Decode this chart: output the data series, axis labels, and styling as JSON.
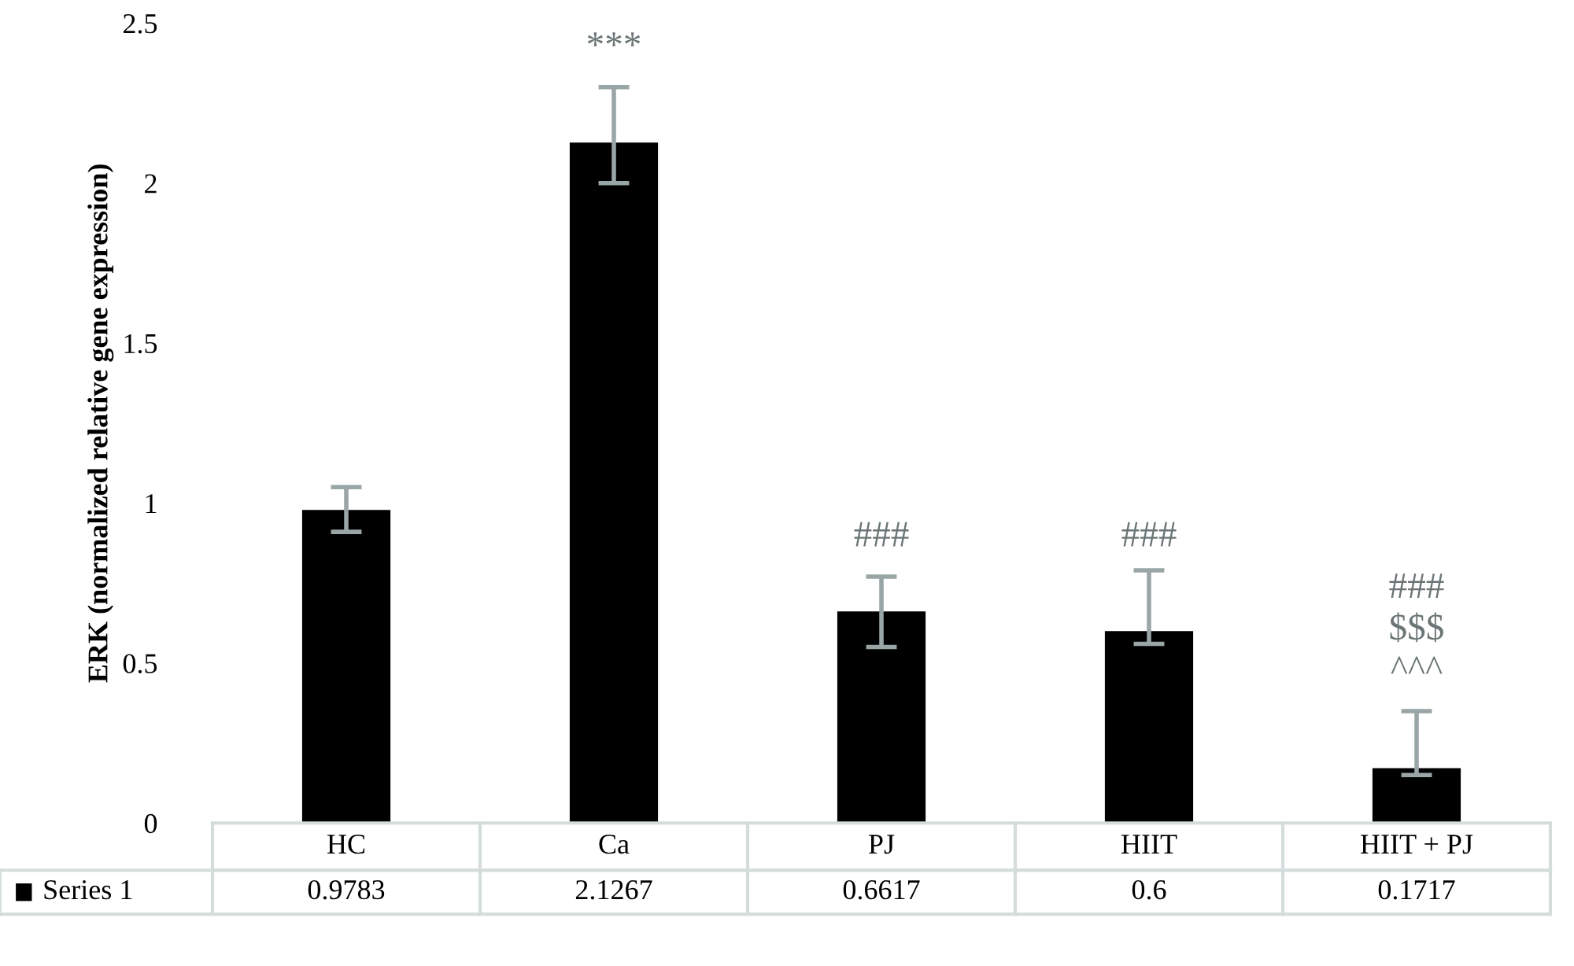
{
  "chart_data": {
    "type": "bar",
    "ylabel": "ERK (normalized relative gene expression)",
    "categories": [
      "HC",
      "Ca",
      "PJ",
      "HIIT",
      "HIIT + PJ"
    ],
    "series": [
      {
        "name": "Series 1",
        "color": "#000000",
        "values": [
          0.9783,
          2.1267,
          0.6617,
          0.6,
          0.1717
        ],
        "errors": [
          [
            0.91,
            1.05
          ],
          [
            2.0,
            2.3
          ],
          [
            0.55,
            0.77
          ],
          [
            0.56,
            0.79
          ],
          [
            0.15,
            0.35
          ]
        ]
      }
    ],
    "ylim": [
      0,
      2.5
    ],
    "yticks": [
      0,
      0.5,
      1,
      1.5,
      2,
      2.5
    ],
    "grid": false,
    "data_labels": true,
    "annotations": [
      "***",
      "###",
      "###",
      "###\n$$$\n^^^"
    ]
  }
}
